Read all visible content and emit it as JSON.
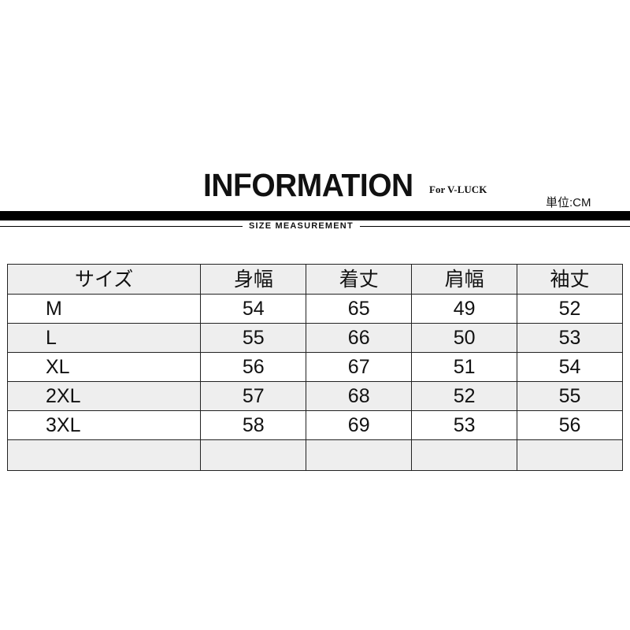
{
  "header": {
    "title": "INFORMATION",
    "subtitle": "For V-LUCK",
    "unit": "単位:CM",
    "section": "SIZE MEASUREMENT"
  },
  "table": {
    "columns": [
      "サイズ",
      "身幅",
      "着丈",
      "肩幅",
      "袖丈"
    ],
    "rows": [
      [
        "M",
        "54",
        "65",
        "49",
        "52"
      ],
      [
        "L",
        "55",
        "66",
        "50",
        "53"
      ],
      [
        "XL",
        "56",
        "67",
        "51",
        "54"
      ],
      [
        "2XL",
        "57",
        "68",
        "52",
        "55"
      ],
      [
        "3XL",
        "58",
        "69",
        "53",
        "56"
      ]
    ]
  }
}
